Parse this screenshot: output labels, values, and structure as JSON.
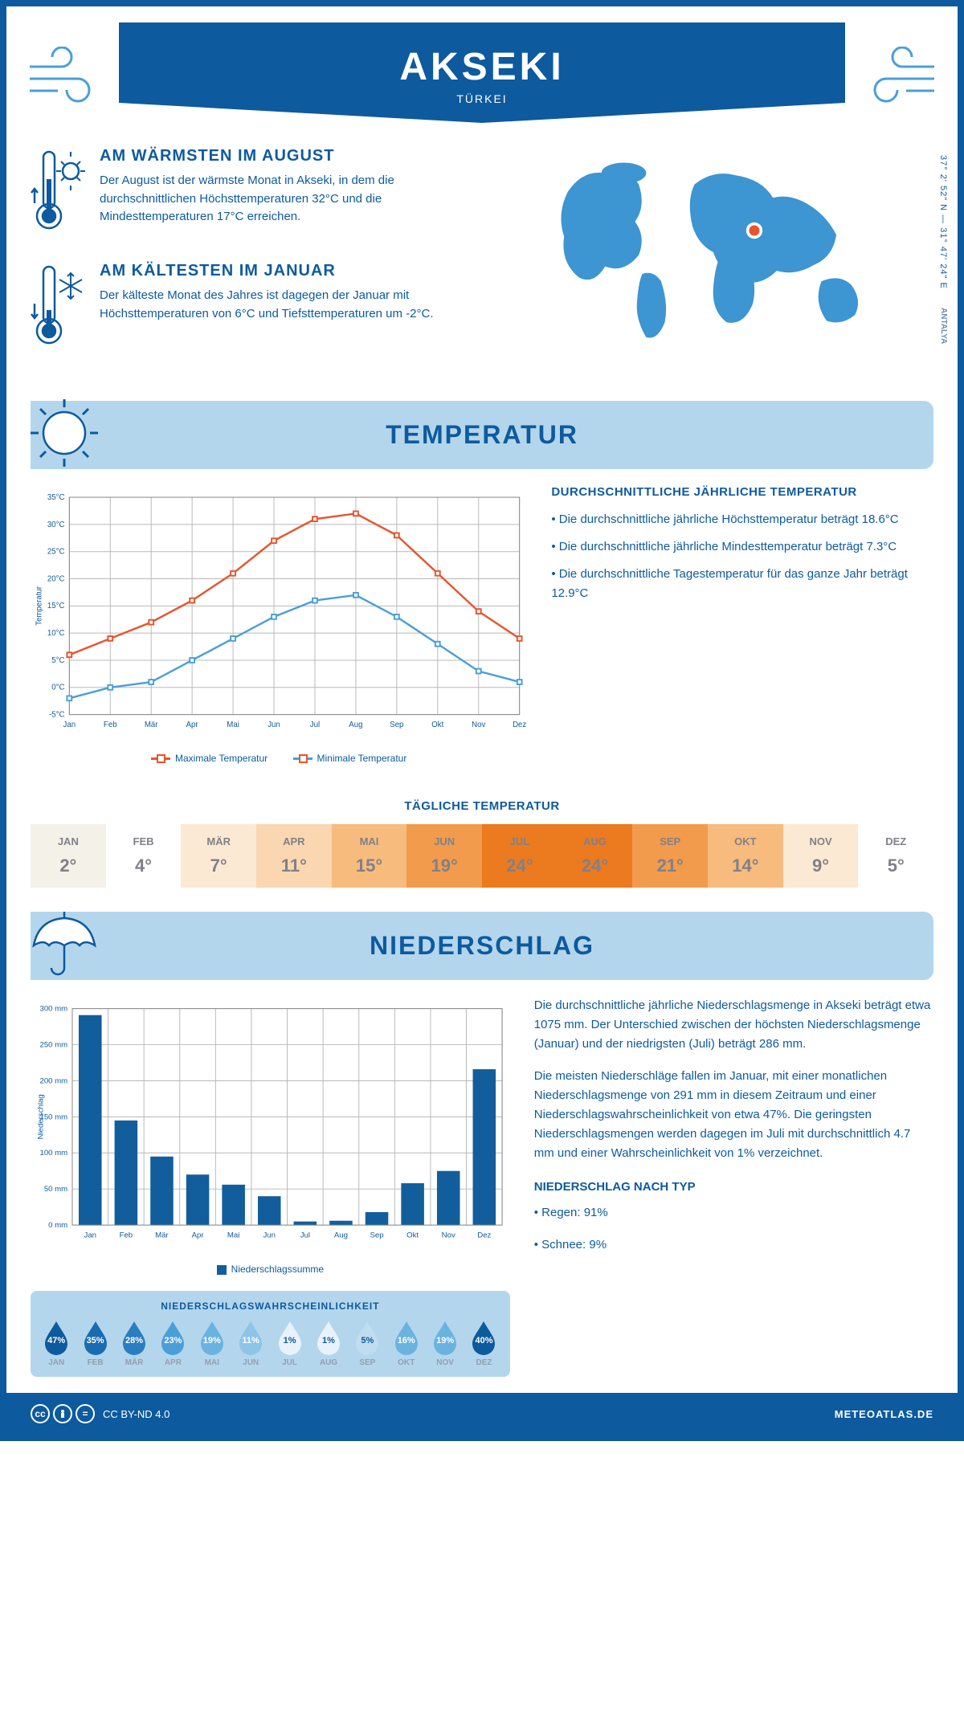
{
  "header": {
    "title": "AKSEKI",
    "country": "TÜRKEI"
  },
  "coords": "37° 2' 52\" N — 31° 47' 24\" E",
  "region": "ANTALYA",
  "warmest": {
    "title": "AM WÄRMSTEN IM AUGUST",
    "text": "Der August ist der wärmste Monat in Akseki, in dem die durchschnittlichen Höchsttemperaturen 32°C und die Mindesttemperaturen 17°C erreichen."
  },
  "coldest": {
    "title": "AM KÄLTESTEN IM JANUAR",
    "text": "Der kälteste Monat des Jahres ist dagegen der Januar mit Höchsttemperaturen von 6°C und Tiefsttemperaturen um -2°C."
  },
  "temp_section": {
    "title": "TEMPERATUR"
  },
  "temp_chart": {
    "months": [
      "Jan",
      "Feb",
      "Mär",
      "Apr",
      "Mai",
      "Jun",
      "Jul",
      "Aug",
      "Sep",
      "Okt",
      "Nov",
      "Dez"
    ],
    "max": [
      6,
      9,
      12,
      16,
      21,
      27,
      31,
      32,
      28,
      21,
      14,
      9
    ],
    "min": [
      -2,
      0,
      1,
      5,
      9,
      13,
      16,
      17,
      13,
      8,
      3,
      1
    ],
    "ymin": -5,
    "ymax": 35,
    "ystep": 5,
    "ylabel": "Temperatur",
    "max_color": "#e8542c",
    "min_color": "#4a9fd8",
    "legend_max": "Maximale Temperatur",
    "legend_min": "Minimale Temperatur",
    "grid_color": "#b8b8b8"
  },
  "temp_side": {
    "title": "DURCHSCHNITTLICHE JÄHRLICHE TEMPERATUR",
    "b1": "• Die durchschnittliche jährliche Höchsttemperatur beträgt 18.6°C",
    "b2": "• Die durchschnittliche jährliche Mindesttemperatur beträgt 7.3°C",
    "b3": "• Die durchschnittliche Tagestemperatur für das ganze Jahr beträgt 12.9°C"
  },
  "daily": {
    "title": "TÄGLICHE TEMPERATUR",
    "months": [
      "JAN",
      "FEB",
      "MÄR",
      "APR",
      "MAI",
      "JUN",
      "JUL",
      "AUG",
      "SEP",
      "OKT",
      "NOV",
      "DEZ"
    ],
    "values": [
      "2°",
      "4°",
      "7°",
      "11°",
      "15°",
      "19°",
      "24°",
      "24°",
      "21°",
      "14°",
      "9°",
      "5°"
    ],
    "colors": [
      "#f4f1e8",
      "#ffffff",
      "#fce9d3",
      "#fad7b0",
      "#f7bb7d",
      "#f29b4c",
      "#ec7a1f",
      "#ec7a1f",
      "#f29b4c",
      "#f7bb7d",
      "#fce9d3",
      "#ffffff"
    ]
  },
  "precip_section": {
    "title": "NIEDERSCHLAG"
  },
  "precip_chart": {
    "months": [
      "Jan",
      "Feb",
      "Mär",
      "Apr",
      "Mai",
      "Jun",
      "Jul",
      "Aug",
      "Sep",
      "Okt",
      "Nov",
      "Dez"
    ],
    "values": [
      291,
      145,
      95,
      70,
      56,
      40,
      5,
      6,
      18,
      58,
      75,
      216
    ],
    "ymin": 0,
    "ymax": 300,
    "ystep": 50,
    "ylabel": "Niederschlag",
    "bar_color": "#125e9c",
    "legend": "Niederschlagssumme"
  },
  "precip_text": {
    "p1": "Die durchschnittliche jährliche Niederschlagsmenge in Akseki beträgt etwa 1075 mm. Der Unterschied zwischen der höchsten Niederschlagsmenge (Januar) und der niedrigsten (Juli) beträgt 286 mm.",
    "p2": "Die meisten Niederschläge fallen im Januar, mit einer monatlichen Niederschlagsmenge von 291 mm in diesem Zeitraum und einer Niederschlagswahrscheinlichkeit von etwa 47%. Die geringsten Niederschlagsmengen werden dagegen im Juli mit durchschnittlich 4.7 mm und einer Wahrscheinlichkeit von 1% verzeichnet.",
    "type_title": "NIEDERSCHLAG NACH TYP",
    "rain": "• Regen: 91%",
    "snow": "• Schnee: 9%"
  },
  "prob": {
    "title": "NIEDERSCHLAGSWAHRSCHEINLICHKEIT",
    "months": [
      "JAN",
      "FEB",
      "MÄR",
      "APR",
      "MAI",
      "JUN",
      "JUL",
      "AUG",
      "SEP",
      "OKT",
      "NOV",
      "DEZ"
    ],
    "values": [
      "47%",
      "35%",
      "28%",
      "23%",
      "19%",
      "11%",
      "1%",
      "1%",
      "5%",
      "16%",
      "19%",
      "40%"
    ],
    "colors": [
      "#0d5a9e",
      "#1a6cb0",
      "#2a7dc0",
      "#4a9fd8",
      "#6ab3e0",
      "#8cc5e8",
      "#e8f2fa",
      "#e8f2fa",
      "#c0dcf0",
      "#6ab3e0",
      "#6ab3e0",
      "#0d5a9e"
    ]
  },
  "footer": {
    "license": "CC BY-ND 4.0",
    "site": "METEOATLAS.DE"
  }
}
